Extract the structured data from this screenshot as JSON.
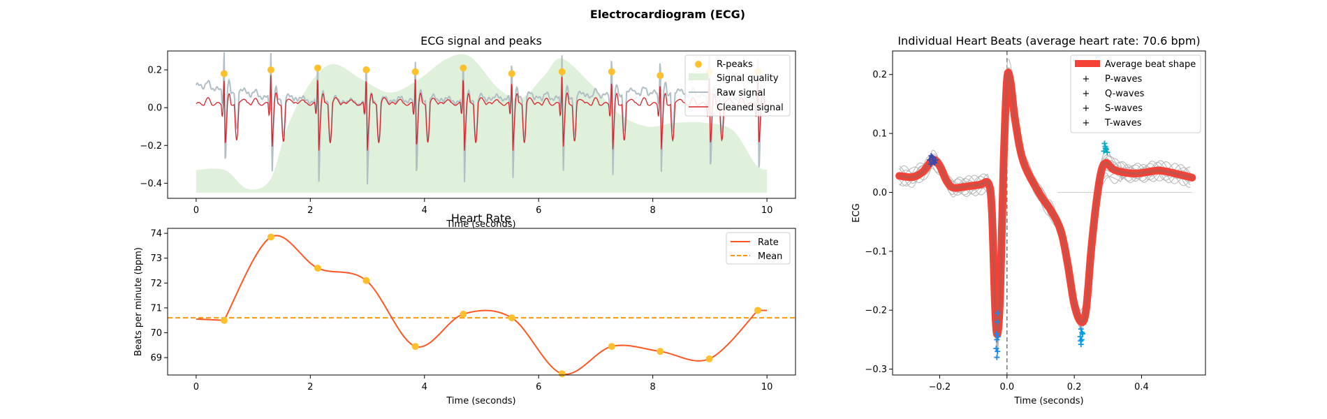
{
  "figure": {
    "suptitle": "Electrocardiogram (ECG)"
  },
  "chart_data": [
    {
      "id": "ecg",
      "type": "line",
      "title": "ECG signal and peaks",
      "xlabel": "Time (seconds)",
      "ylabel": "",
      "xlim": [
        -0.5,
        10.5
      ],
      "ylim": [
        -0.48,
        0.3
      ],
      "xticks": [
        0,
        2,
        4,
        6,
        8,
        10
      ],
      "yticks": [
        -0.4,
        -0.2,
        0.0,
        0.2
      ],
      "ytick_labels": [
        "−0.4",
        "−0.2",
        "0.0",
        "0.2"
      ],
      "grid": false,
      "legend_position": "top-right",
      "legend": [
        "R-peaks",
        "Signal quality",
        "Raw signal",
        "Cleaned signal"
      ],
      "r_peaks": [
        [
          0.49,
          0.18
        ],
        [
          1.31,
          0.2
        ],
        [
          2.13,
          0.21
        ],
        [
          2.98,
          0.2
        ],
        [
          3.84,
          0.19
        ],
        [
          4.68,
          0.21
        ],
        [
          5.53,
          0.18
        ],
        [
          6.41,
          0.19
        ],
        [
          7.28,
          0.19
        ],
        [
          8.13,
          0.17
        ],
        [
          8.99,
          0.19
        ],
        [
          9.84,
          0.19
        ]
      ],
      "signal_quality": [
        [
          0,
          -0.33
        ],
        [
          0.5,
          -0.33
        ],
        [
          0.9,
          -0.43
        ],
        [
          1.3,
          -0.38
        ],
        [
          1.6,
          -0.1
        ],
        [
          2.0,
          0.13
        ],
        [
          2.4,
          0.23
        ],
        [
          2.9,
          0.15
        ],
        [
          3.4,
          0.08
        ],
        [
          3.9,
          0.15
        ],
        [
          4.4,
          0.26
        ],
        [
          4.8,
          0.27
        ],
        [
          5.3,
          0.1
        ],
        [
          5.7,
          0.05
        ],
        [
          6.1,
          0.17
        ],
        [
          6.4,
          0.26
        ],
        [
          6.9,
          0.13
        ],
        [
          7.4,
          -0.03
        ],
        [
          7.9,
          -0.1
        ],
        [
          8.4,
          -0.08
        ],
        [
          8.9,
          -0.08
        ],
        [
          9.4,
          -0.12
        ],
        [
          9.8,
          -0.3
        ],
        [
          10.0,
          -0.33
        ]
      ],
      "colors": {
        "r_peaks": "#FFC02E",
        "quality": "#DFF0DB",
        "raw": "#B0BEC5",
        "cleaned": "#D9232A"
      },
      "series": [
        {
          "name": "Raw signal",
          "baseline": [
            [
              0,
              0.12
            ],
            [
              0.5,
              0.09
            ],
            [
              1.3,
              0.05
            ],
            [
              2.1,
              0.03
            ],
            [
              3.0,
              0.02
            ],
            [
              3.8,
              0.04
            ],
            [
              4.7,
              0.03
            ],
            [
              5.5,
              0.05
            ],
            [
              6.4,
              0.05
            ],
            [
              7.3,
              0.07
            ],
            [
              8.1,
              0.08
            ],
            [
              9.0,
              0.06
            ],
            [
              9.8,
              0.05
            ],
            [
              10,
              0.05
            ]
          ]
        },
        {
          "name": "Cleaned signal",
          "baseline": [
            [
              0,
              0.02
            ],
            [
              10,
              0.02
            ]
          ]
        }
      ]
    },
    {
      "id": "rate",
      "type": "line",
      "title": "Heart Rate",
      "xlabel": "Time (seconds)",
      "ylabel": "Beats per minute (bpm)",
      "xlim": [
        -0.5,
        10.5
      ],
      "ylim": [
        68.3,
        74.2
      ],
      "xticks": [
        0,
        2,
        4,
        6,
        8,
        10
      ],
      "yticks": [
        69,
        70,
        71,
        72,
        73,
        74
      ],
      "grid": false,
      "legend_position": "top-right",
      "legend": [
        "Rate",
        "Mean"
      ],
      "mean": 70.6,
      "colors": {
        "rate": "#FF5722",
        "mean": "#FF9800",
        "points": "#FFC02E"
      },
      "series": [
        {
          "name": "Rate",
          "points": [
            [
              0.49,
              70.5
            ],
            [
              1.31,
              73.85
            ],
            [
              2.13,
              72.6
            ],
            [
              2.98,
              72.1
            ],
            [
              3.84,
              69.45
            ],
            [
              4.68,
              70.75
            ],
            [
              5.53,
              70.6
            ],
            [
              6.41,
              68.35
            ],
            [
              7.28,
              69.45
            ],
            [
              8.13,
              69.25
            ],
            [
              8.99,
              68.95
            ],
            [
              9.84,
              70.9
            ]
          ],
          "start": [
            0,
            70.55
          ],
          "end": [
            10.0,
            70.9
          ]
        }
      ]
    },
    {
      "id": "beats",
      "type": "line",
      "title": "Individual Heart Beats (average heart rate: 70.6 bpm)",
      "xlabel": "Time (seconds)",
      "ylabel": "ECG",
      "xlim": [
        -0.34,
        0.59
      ],
      "ylim": [
        -0.31,
        0.24
      ],
      "xticks": [
        -0.2,
        0.0,
        0.2,
        0.4
      ],
      "xtick_labels": [
        "−0.2",
        "0.0",
        "0.2",
        "0.4"
      ],
      "yticks": [
        -0.3,
        -0.2,
        -0.1,
        0.0,
        0.1,
        0.2
      ],
      "ytick_labels": [
        "−0.3",
        "−0.2",
        "−0.1",
        "0.0",
        "0.1",
        "0.2"
      ],
      "grid": false,
      "legend_position": "top-right",
      "legend": [
        "Average beat shape",
        "P-waves",
        "Q-waves",
        "S-waves",
        "T-waves"
      ],
      "colors": {
        "average": "#F44336",
        "p": "#3949AB",
        "q": "#1E88E5",
        "s": "#039BE5",
        "t": "#00ACC1",
        "beats": "#b5b5b5"
      },
      "average_beat": [
        [
          -0.32,
          0.028
        ],
        [
          -0.28,
          0.026
        ],
        [
          -0.25,
          0.035
        ],
        [
          -0.22,
          0.055
        ],
        [
          -0.2,
          0.045
        ],
        [
          -0.18,
          0.02
        ],
        [
          -0.16,
          0.008
        ],
        [
          -0.12,
          0.01
        ],
        [
          -0.08,
          0.013
        ],
        [
          -0.055,
          0.015
        ],
        [
          -0.045,
          -0.03
        ],
        [
          -0.035,
          -0.2
        ],
        [
          -0.028,
          -0.24
        ],
        [
          -0.02,
          -0.17
        ],
        [
          -0.01,
          0.05
        ],
        [
          0.0,
          0.19
        ],
        [
          0.01,
          0.19
        ],
        [
          0.025,
          0.12
        ],
        [
          0.05,
          0.05
        ],
        [
          0.1,
          -0.005
        ],
        [
          0.13,
          -0.03
        ],
        [
          0.16,
          -0.065
        ],
        [
          0.18,
          -0.12
        ],
        [
          0.2,
          -0.19
        ],
        [
          0.22,
          -0.22
        ],
        [
          0.235,
          -0.2
        ],
        [
          0.25,
          -0.1
        ],
        [
          0.265,
          -0.02
        ],
        [
          0.28,
          0.035
        ],
        [
          0.295,
          0.05
        ],
        [
          0.32,
          0.038
        ],
        [
          0.38,
          0.032
        ],
        [
          0.45,
          0.037
        ],
        [
          0.5,
          0.032
        ],
        [
          0.55,
          0.025
        ]
      ],
      "p_waves": [
        [
          -0.225,
          0.062
        ],
        [
          -0.22,
          0.058
        ],
        [
          -0.23,
          0.055
        ],
        [
          -0.218,
          0.052
        ],
        [
          -0.226,
          0.048
        ],
        [
          -0.212,
          0.055
        ],
        [
          -0.222,
          0.06
        ],
        [
          -0.215,
          0.05
        ]
      ],
      "q_waves": [
        [
          -0.03,
          -0.28
        ],
        [
          -0.028,
          -0.27
        ],
        [
          -0.032,
          -0.265
        ],
        [
          -0.03,
          -0.25
        ],
        [
          -0.027,
          -0.245
        ],
        [
          -0.029,
          -0.22
        ],
        [
          -0.031,
          -0.24
        ],
        [
          -0.028,
          -0.205
        ]
      ],
      "s_waves": [
        [
          0.22,
          -0.258
        ],
        [
          0.222,
          -0.25
        ],
        [
          0.218,
          -0.245
        ],
        [
          0.225,
          -0.24
        ],
        [
          0.22,
          -0.232
        ],
        [
          0.223,
          -0.238
        ],
        [
          0.219,
          -0.252
        ]
      ],
      "t_waves": [
        [
          0.29,
          0.083
        ],
        [
          0.292,
          0.078
        ],
        [
          0.295,
          0.073
        ],
        [
          0.288,
          0.07
        ],
        [
          0.298,
          0.068
        ],
        [
          0.293,
          0.075
        ]
      ]
    }
  ]
}
